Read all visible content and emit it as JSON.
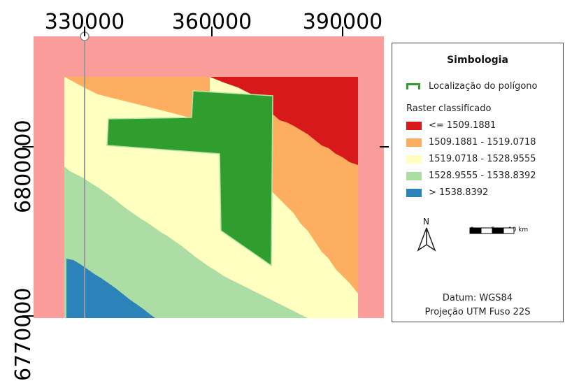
{
  "map": {
    "x_ticks": [
      "330000",
      "360000",
      "390000"
    ],
    "y_ticks": [
      "6800000",
      "6770000"
    ],
    "colors": {
      "background": "#fb9d9b",
      "class1": "#d7191c",
      "class2": "#fdae61",
      "class3": "#ffffc0",
      "class4": "#abdda4",
      "class5": "#2b83ba",
      "polygon": "#2f9e2e",
      "polygon_outline": "#b9e4a8"
    }
  },
  "legend": {
    "title": "Simbologia",
    "polygon_label": "Localização do polígono",
    "raster_heading": "Raster classificado",
    "classes": [
      {
        "label": "<= 1509.1881",
        "color": "#d7191c"
      },
      {
        "label": "1509.1881 - 1519.0718",
        "color": "#fdae61"
      },
      {
        "label": "1519.0718 - 1528.9555",
        "color": "#ffffc0"
      },
      {
        "label": "1528.9555 - 1538.8392",
        "color": "#abdda4"
      },
      {
        "label": "> 1538.8392",
        "color": "#2b83ba"
      }
    ],
    "north_label": "N",
    "scale_labels": [
      "0",
      "5",
      "10 km"
    ],
    "datum": "Datum: WGS84",
    "projection": "Projeção UTM Fuso 22S"
  }
}
